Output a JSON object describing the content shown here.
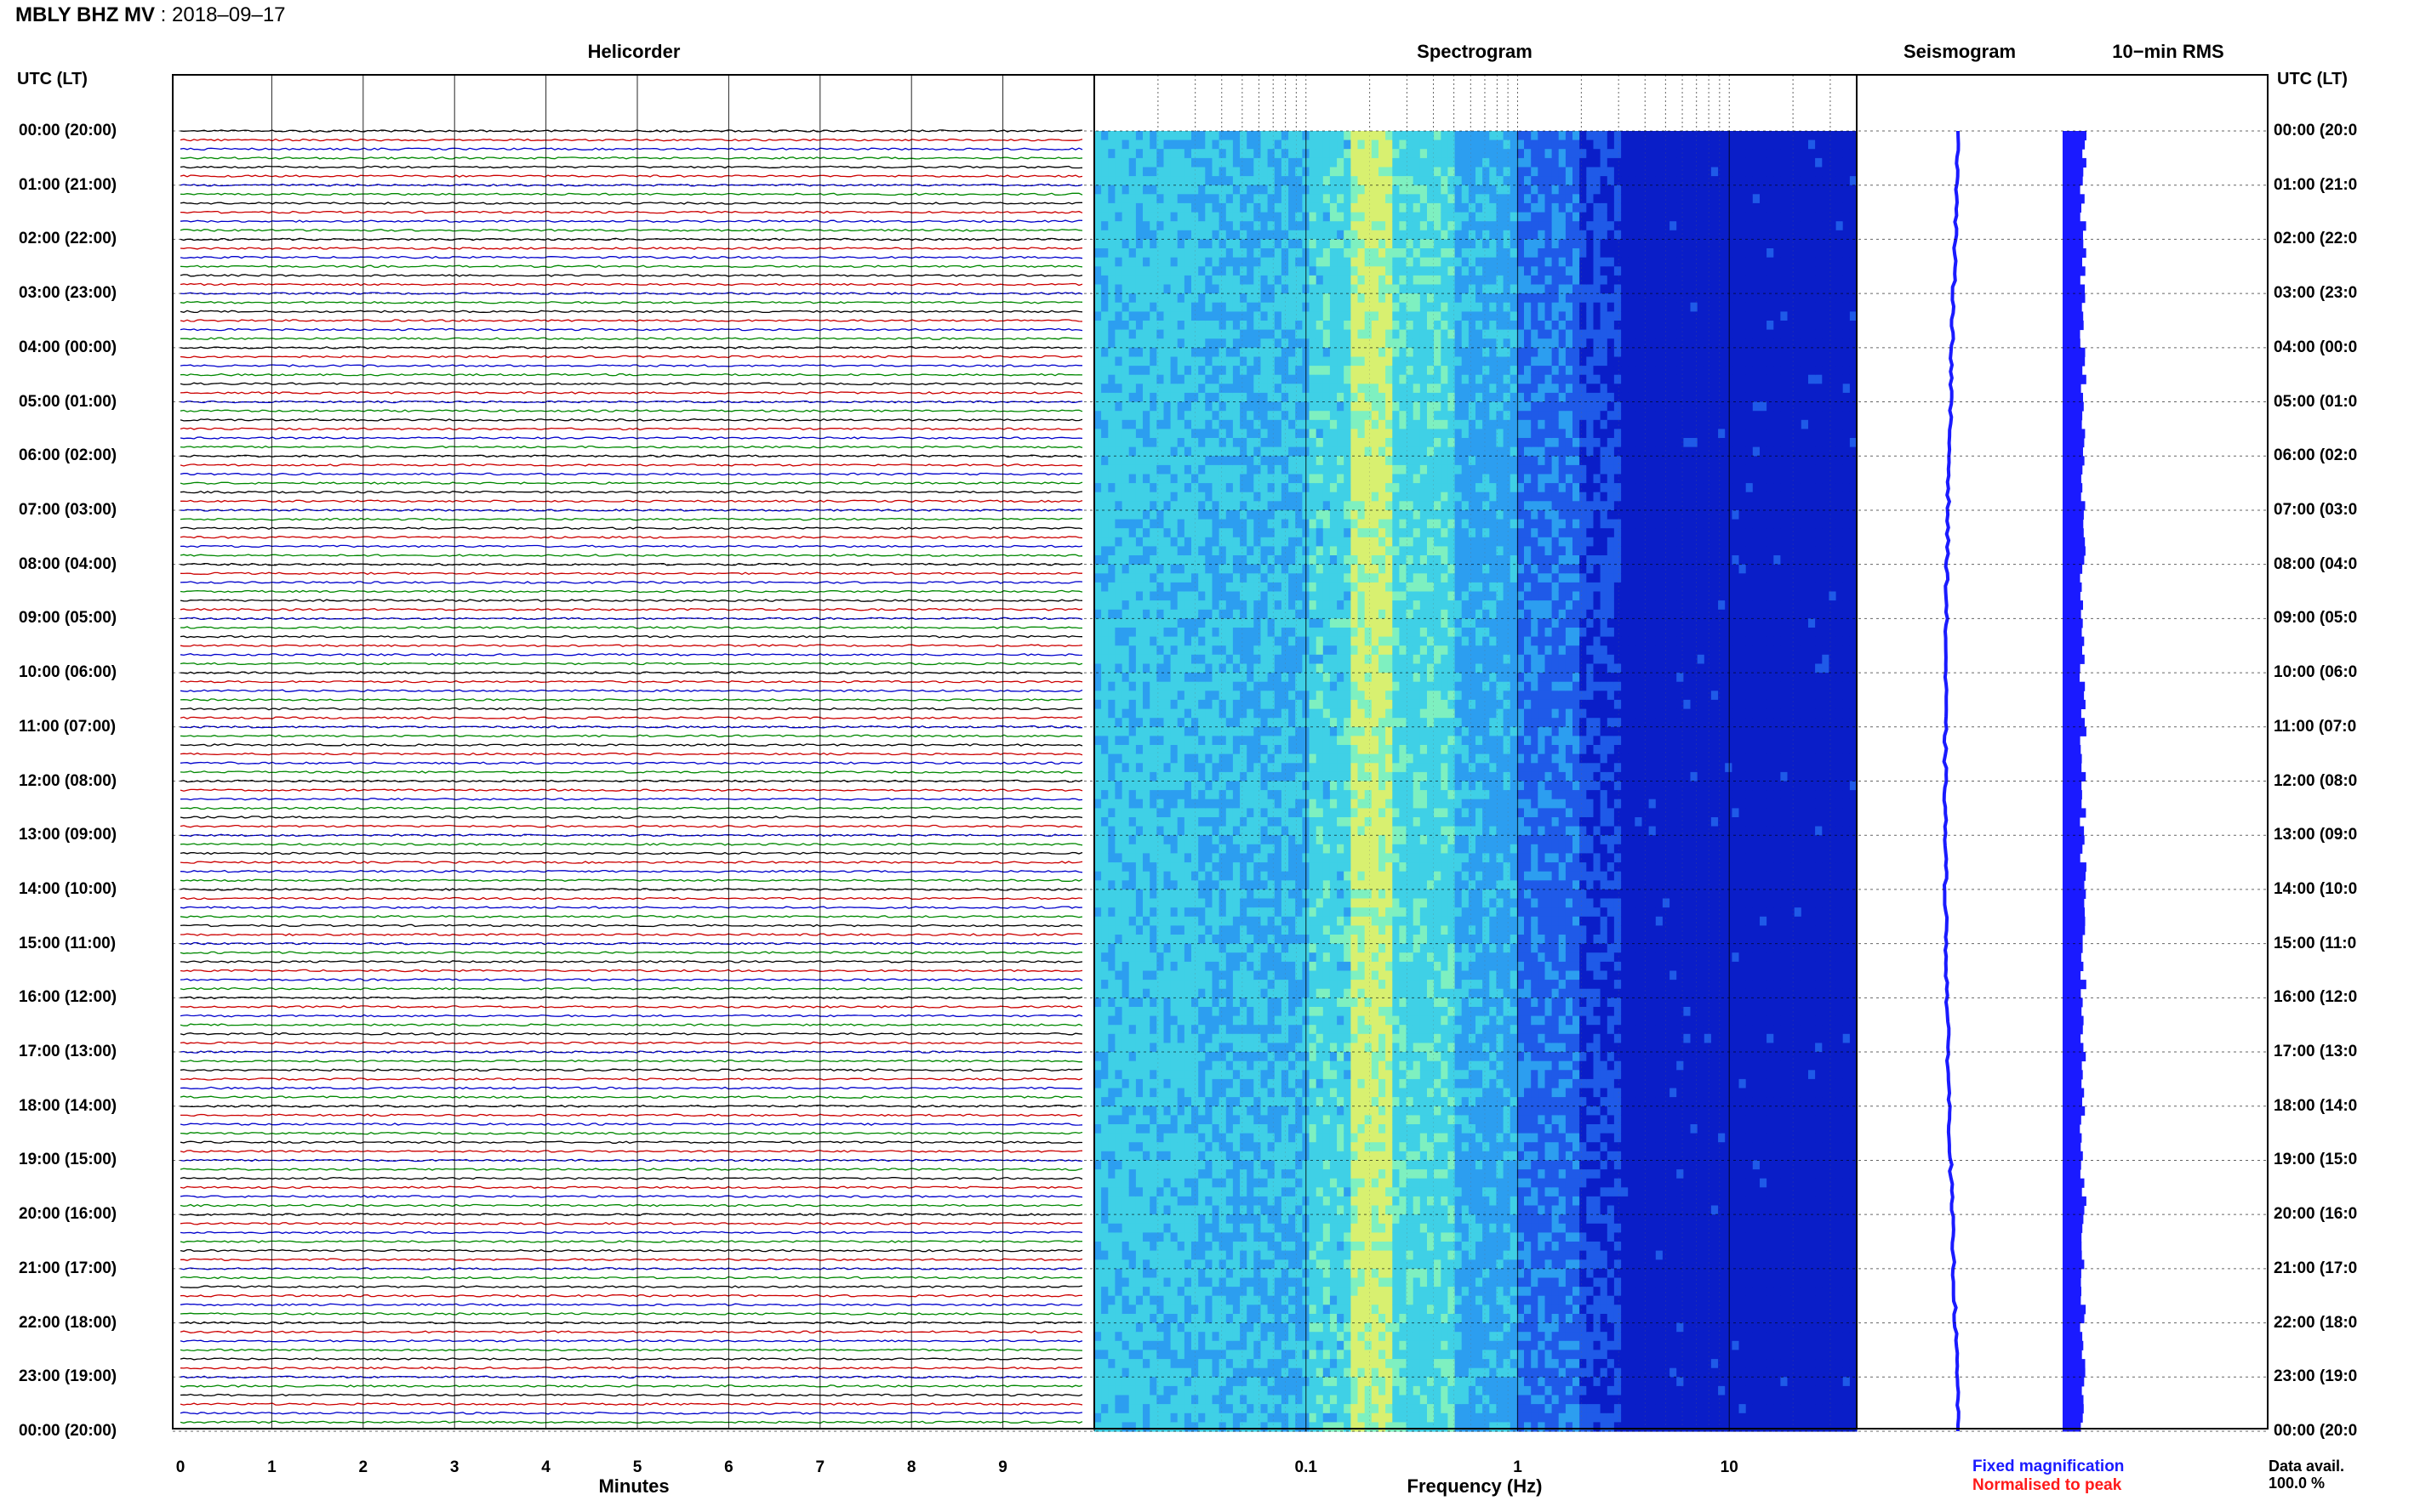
{
  "header": {
    "station": "MBLY BHZ MV",
    "separator": " : ",
    "date": "2018–09–17"
  },
  "panels": {
    "helicorder": "Helicorder",
    "spectrogram": "Spectrogram",
    "seismogram": "Seismogram",
    "rms": "10−min RMS"
  },
  "axis": {
    "utc_left": "UTC (LT)",
    "utc_right": "UTC (LT)",
    "minutes_label": "Minutes",
    "frequency_label": "Frequency (Hz)"
  },
  "legend": {
    "fixed": "Fixed magnification",
    "fixed_color": "#1a1aff",
    "normalised": "Normalised to peak",
    "normalised_color": "#ff1a1a"
  },
  "availability": {
    "label": "Data avail.",
    "value": "100.0 %"
  },
  "chart_data": {
    "type": "heatmap",
    "time_labels_left": [
      "00:00 (20:00)",
      "01:00 (21:00)",
      "02:00 (22:00)",
      "03:00 (23:00)",
      "04:00 (00:00)",
      "05:00 (01:00)",
      "06:00 (02:00)",
      "07:00 (03:00)",
      "08:00 (04:00)",
      "09:00 (05:00)",
      "10:00 (06:00)",
      "11:00 (07:00)",
      "12:00 (08:00)",
      "13:00 (09:00)",
      "14:00 (10:00)",
      "15:00 (11:00)",
      "16:00 (12:00)",
      "17:00 (13:00)",
      "18:00 (14:00)",
      "19:00 (15:00)",
      "20:00 (16:00)",
      "21:00 (17:00)",
      "22:00 (18:00)",
      "23:00 (19:00)",
      "00:00 (20:00)"
    ],
    "time_labels_right": [
      "00:00 (20:0",
      "01:00 (21:0",
      "02:00 (22:0",
      "03:00 (23:0",
      "04:00 (00:0",
      "05:00 (01:0",
      "06:00 (02:0",
      "07:00 (03:0",
      "08:00 (04:0",
      "09:00 (05:0",
      "10:00 (06:0",
      "11:00 (07:0",
      "12:00 (08:0",
      "13:00 (09:0",
      "14:00 (10:0",
      "15:00 (11:0",
      "16:00 (12:0",
      "17:00 (13:0",
      "18:00 (14:0",
      "19:00 (15:0",
      "20:00 (16:0",
      "21:00 (17:0",
      "22:00 (18:0",
      "23:00 (19:0",
      "00:00 (20:0"
    ],
    "hours": 24,
    "helicorder": {
      "minute_ticks": [
        "0",
        "1",
        "2",
        "3",
        "4",
        "5",
        "6",
        "7",
        "8",
        "9"
      ],
      "xlim": [
        0,
        10
      ],
      "traces_per_hour": 6,
      "trace_colors": [
        "#000000",
        "#cc0000",
        "#0000cc",
        "#008800"
      ]
    },
    "spectrogram": {
      "freq_ticks": [
        "0.1",
        "1",
        "10"
      ],
      "xlim_hz": [
        0.01,
        40
      ],
      "scale": "log",
      "colormap": [
        "#0a1ec8",
        "#1f5ae8",
        "#2c9ef0",
        "#3fd0e6",
        "#7ef0c0",
        "#d8f070"
      ]
    },
    "rms": {
      "level": 0.75
    }
  }
}
